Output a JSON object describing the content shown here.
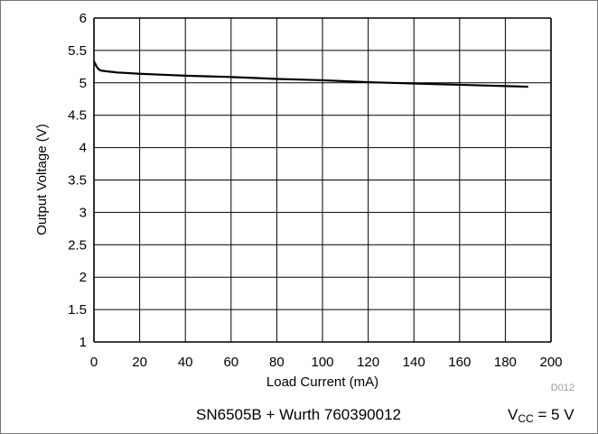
{
  "chart_data": {
    "type": "line",
    "xlabel": "Load Current (mA)",
    "ylabel": "Output Voltage (V)",
    "xlim": [
      0,
      200
    ],
    "ylim": [
      1,
      6
    ],
    "xticks": [
      "0",
      "20",
      "40",
      "60",
      "80",
      "100",
      "120",
      "140",
      "160",
      "180",
      "200"
    ],
    "yticks": [
      "1",
      "1.5",
      "2",
      "2.5",
      "3",
      "3.5",
      "4",
      "4.5",
      "5",
      "5.5",
      "6"
    ],
    "grid": true,
    "series": [
      {
        "x": [
          0,
          0.5,
          1,
          2,
          3,
          5,
          10,
          20,
          30,
          40,
          50,
          60,
          70,
          80,
          90,
          100,
          110,
          120,
          130,
          140,
          150,
          160,
          170,
          180,
          190
        ],
        "y": [
          5.33,
          5.3,
          5.26,
          5.21,
          5.19,
          5.18,
          5.16,
          5.14,
          5.125,
          5.11,
          5.1,
          5.09,
          5.075,
          5.06,
          5.05,
          5.04,
          5.025,
          5.01,
          5.0,
          4.99,
          4.98,
          4.97,
          4.96,
          4.95,
          4.94
        ]
      }
    ],
    "figure_id": "D012"
  },
  "caption": {
    "left": "SN6505B + Wurth 760390012",
    "vcc_main": "V",
    "vcc_sub": "CC",
    "vcc_value": " = 5 V"
  },
  "colors": {
    "line": "#000000",
    "grid": "#000000"
  }
}
